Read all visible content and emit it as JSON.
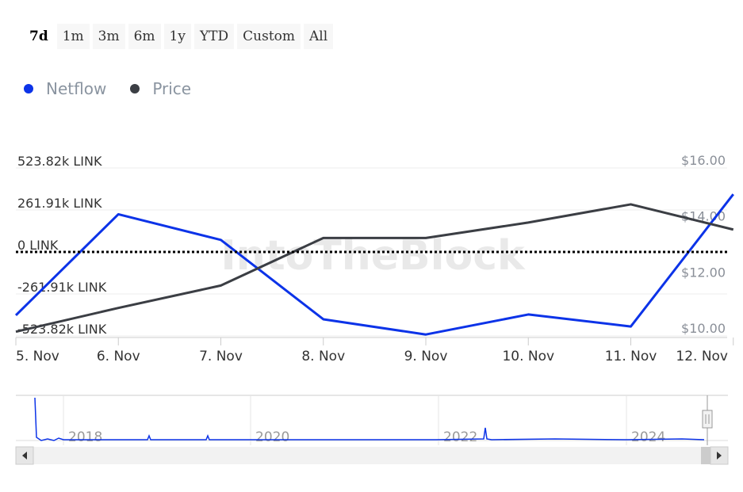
{
  "range_selector": {
    "buttons": [
      "7d",
      "1m",
      "3m",
      "6m",
      "1y",
      "YTD",
      "Custom",
      "All"
    ],
    "active": "7d"
  },
  "legend": [
    {
      "name": "Netflow",
      "color": "#0c33e8"
    },
    {
      "name": "Price",
      "color": "#3b3e44"
    }
  ],
  "watermark": "IntoTheBlock",
  "chart_data": {
    "type": "line",
    "x": [
      "5. Nov",
      "6. Nov",
      "7. Nov",
      "8. Nov",
      "9. Nov",
      "10. Nov",
      "11. Nov",
      "12. Nov"
    ],
    "left_axis": {
      "ticks": [
        "523.82k LINK",
        "261.91k LINK",
        "0 LINK",
        "-261.91k LINK",
        "-523.82k LINK"
      ],
      "range": [
        -523820,
        523820
      ]
    },
    "right_axis": {
      "ticks": [
        "$16.00",
        "$14.00",
        "$12.00",
        "$10.00"
      ],
      "range": [
        10,
        16
      ]
    },
    "series": [
      {
        "name": "Netflow",
        "axis": "left",
        "color": "#0c33e8",
        "values": [
          -395000,
          235000,
          75000,
          -420000,
          -515000,
          -390000,
          -465000,
          360000
        ]
      },
      {
        "name": "Price",
        "axis": "right",
        "color": "#3b3e44",
        "values": [
          10.15,
          11.0,
          11.8,
          13.5,
          13.5,
          14.05,
          14.7,
          13.8
        ]
      }
    ],
    "zero_line": {
      "value": 0,
      "style": "dotted",
      "color": "#000000"
    },
    "navigator": {
      "year_labels": [
        "2018",
        "2020",
        "2022",
        "2024"
      ]
    }
  }
}
